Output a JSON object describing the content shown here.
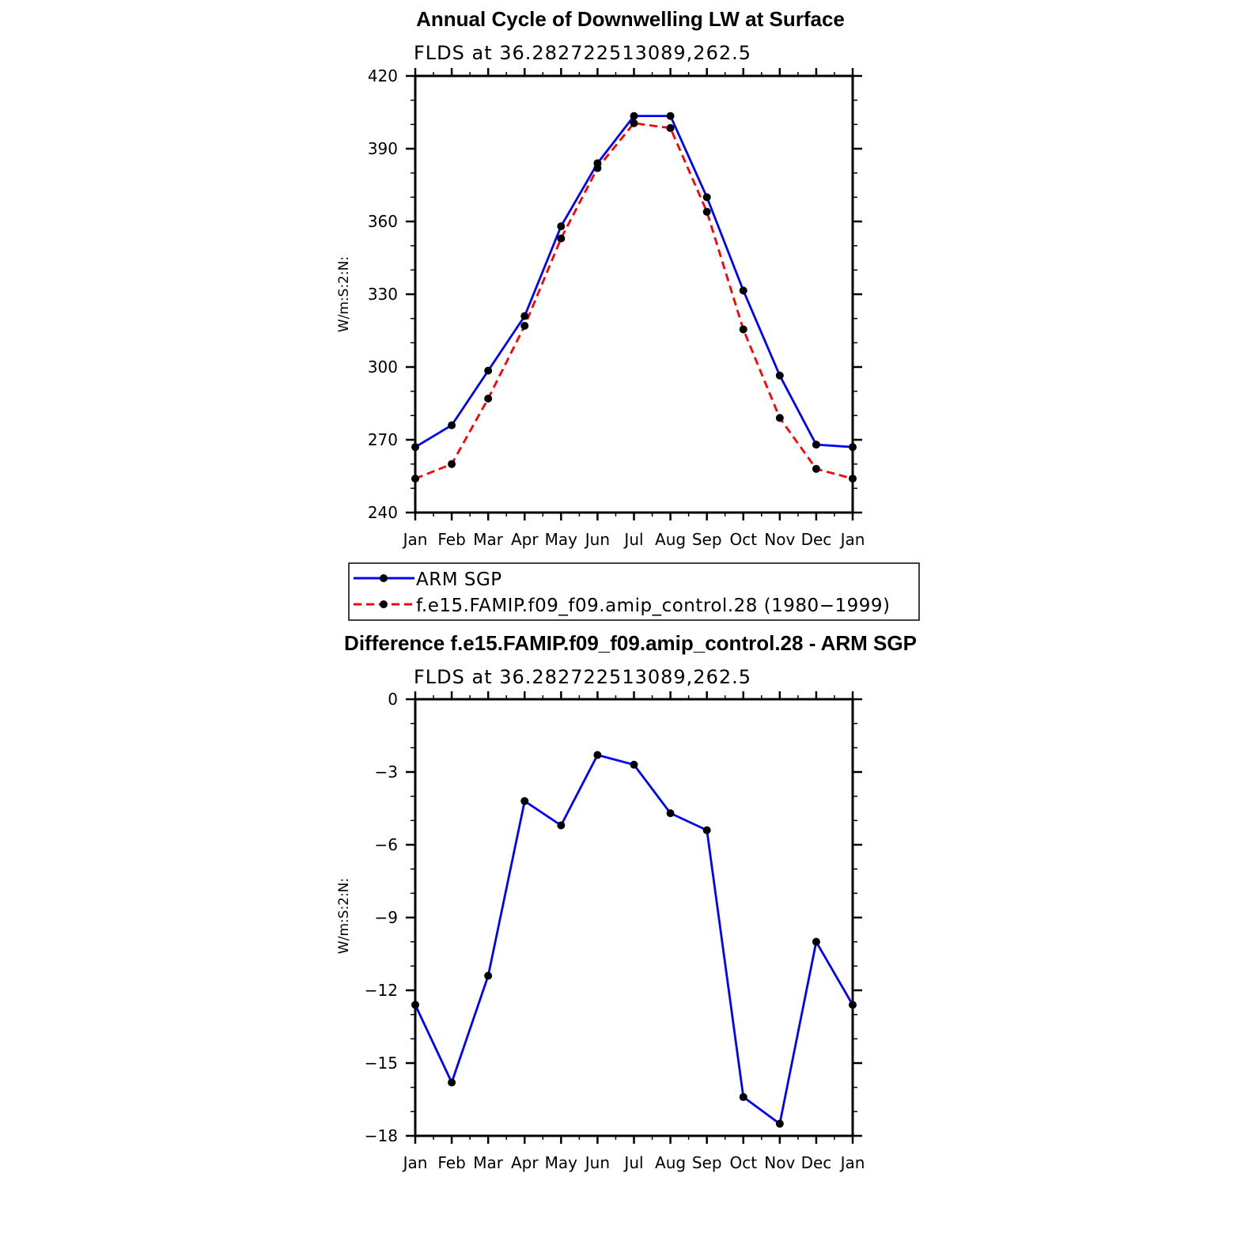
{
  "chart_data": [
    {
      "type": "line",
      "title": "Annual Cycle of Downwelling LW at Surface",
      "subtitle": "FLDS at 36.282722513089,262.5",
      "ylabel": "W/m:S:2:N:",
      "categories": [
        "Jan",
        "Feb",
        "Mar",
        "Apr",
        "May",
        "Jun",
        "Jul",
        "Aug",
        "Sep",
        "Oct",
        "Nov",
        "Dec",
        "Jan"
      ],
      "ylim": [
        240,
        420
      ],
      "yticks": [
        "240",
        "270",
        "300",
        "330",
        "360",
        "390",
        "420"
      ],
      "legend_position": "below",
      "series": [
        {
          "name": "ARM SGP",
          "color": "#0000ff",
          "dash": "solid",
          "values": [
            267,
            276,
            298.5,
            321,
            358,
            384,
            403.5,
            403.5,
            370,
            331.5,
            296.5,
            268,
            267
          ]
        },
        {
          "name": "f.e15.FAMIP.f09_f09.amip_control.28 (1980−1999)",
          "color": "#ff0000",
          "dash": "dashed",
          "values": [
            254,
            260,
            287,
            317,
            353,
            382,
            400.5,
            398.5,
            364,
            315.5,
            279,
            258,
            254
          ]
        }
      ]
    },
    {
      "type": "line",
      "title": "Difference f.e15.FAMIP.f09_f09.amip_control.28 - ARM SGP",
      "subtitle": "FLDS at 36.282722513089,262.5",
      "ylabel": "W/m:S:2:N:",
      "categories": [
        "Jan",
        "Feb",
        "Mar",
        "Apr",
        "May",
        "Jun",
        "Jul",
        "Aug",
        "Sep",
        "Oct",
        "Nov",
        "Dec",
        "Jan"
      ],
      "ylim": [
        -18,
        0
      ],
      "yticks": [
        "−18",
        "−15",
        "−12",
        "−9",
        "−6",
        "−3",
        "0"
      ],
      "series": [
        {
          "color": "#0000ff",
          "dash": "solid",
          "values": [
            -12.6,
            -15.8,
            -11.4,
            -4.2,
            -5.2,
            -2.3,
            -2.7,
            -4.7,
            -5.4,
            -16.4,
            -17.5,
            -10.0,
            -12.6
          ]
        }
      ]
    }
  ]
}
